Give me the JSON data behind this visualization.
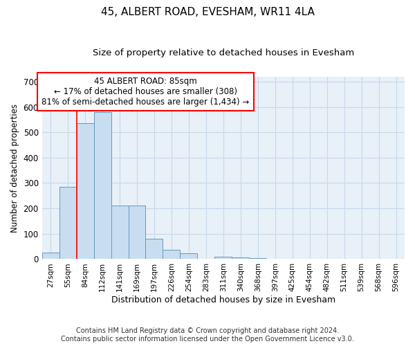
{
  "title": "45, ALBERT ROAD, EVESHAM, WR11 4LA",
  "subtitle": "Size of property relative to detached houses in Evesham",
  "xlabel": "Distribution of detached houses by size in Evesham",
  "ylabel": "Number of detached properties",
  "footnote": "Contains HM Land Registry data © Crown copyright and database right 2024.\nContains public sector information licensed under the Open Government Licence v3.0.",
  "categories": [
    "27sqm",
    "55sqm",
    "84sqm",
    "112sqm",
    "141sqm",
    "169sqm",
    "197sqm",
    "226sqm",
    "254sqm",
    "283sqm",
    "311sqm",
    "340sqm",
    "368sqm",
    "397sqm",
    "425sqm",
    "454sqm",
    "482sqm",
    "511sqm",
    "539sqm",
    "568sqm",
    "596sqm"
  ],
  "values": [
    25,
    285,
    535,
    580,
    210,
    210,
    80,
    38,
    22,
    0,
    10,
    8,
    5,
    0,
    0,
    0,
    0,
    0,
    0,
    0,
    0
  ],
  "bar_color": "#c8ddef",
  "bar_edge_color": "#6699bb",
  "grid_color": "#c5d8ea",
  "background_color": "#e8f0f8",
  "red_line_x": 2.0,
  "annotation_text": "45 ALBERT ROAD: 85sqm\n← 17% of detached houses are smaller (308)\n81% of semi-detached houses are larger (1,434) →",
  "annotation_box_color": "white",
  "annotation_box_edge": "red",
  "ylim": [
    0,
    720
  ],
  "yticks": [
    0,
    100,
    200,
    300,
    400,
    500,
    600,
    700
  ],
  "title_fontsize": 11,
  "subtitle_fontsize": 9.5
}
